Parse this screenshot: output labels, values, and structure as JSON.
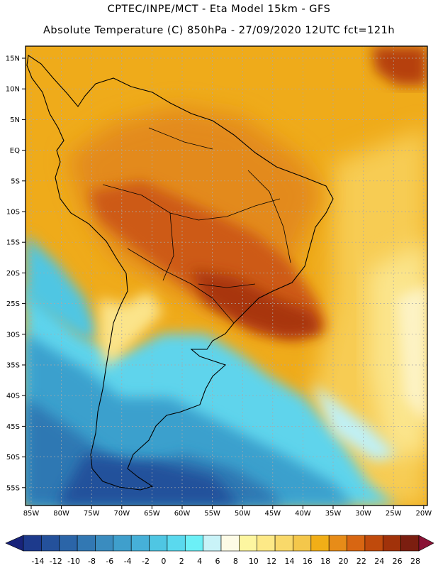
{
  "header": {
    "line1": "CPTEC/INPE/MCT -  Eta Model 15km - GFS",
    "line2": "Absolute Temperature (C) 850hPa - 27/09/2020 12UTC fct=121h"
  },
  "map": {
    "lat_labels": [
      "15N",
      "10N",
      "5N",
      "EQ",
      "5S",
      "10S",
      "15S",
      "20S",
      "25S",
      "30S",
      "35S",
      "40S",
      "45S",
      "50S",
      "55S"
    ],
    "lon_labels": [
      "85W",
      "80W",
      "75W",
      "70W",
      "65W",
      "60W",
      "55W",
      "50W",
      "45W",
      "40W",
      "35W",
      "30W",
      "25W",
      "20W"
    ]
  },
  "colorbar": {
    "labels": [
      "-14",
      "-12",
      "-10",
      "-8",
      "-6",
      "-4",
      "-2",
      "0",
      "2",
      "4",
      "6",
      "8",
      "10",
      "12",
      "14",
      "16",
      "18",
      "20",
      "22",
      "24",
      "26",
      "28"
    ],
    "colors": [
      "#1d3a8c",
      "#24519b",
      "#2b65a8",
      "#3278b3",
      "#3a8cbf",
      "#3f9fcc",
      "#46b0d8",
      "#4fc6e3",
      "#5ad9ee",
      "#6cf0f7",
      "#c9f3f8",
      "#fdfbe6",
      "#fdf6a0",
      "#fde987",
      "#f9d96a",
      "#f4c74b",
      "#f1ae17",
      "#e78c18",
      "#d86612",
      "#c04a0c",
      "#a1320a",
      "#7b1e10"
    ],
    "end_colors": {
      "low": "#18237a",
      "high": "#8a1235"
    }
  }
}
